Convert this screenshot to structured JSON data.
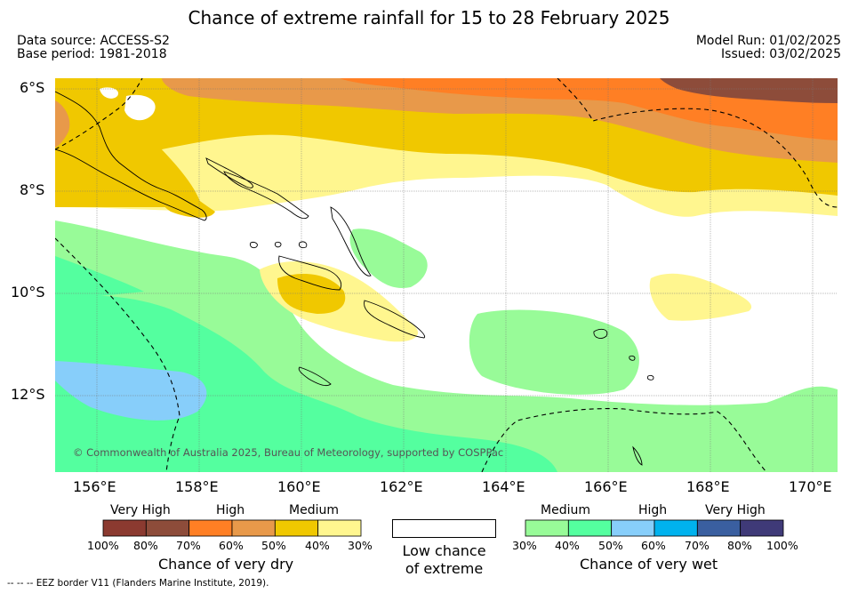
{
  "title": "Chance of extreme rainfall for 15 to 28 February 2025",
  "data_source": "Data source: ACCESS-S2",
  "base_period": "Base period: 1981-2018",
  "model_run": "Model Run: 01/02/2025",
  "issued": "Issued: 03/02/2025",
  "lat_labels": [
    "6°S",
    "8°S",
    "10°S",
    "12°S"
  ],
  "lon_labels": [
    "156°E",
    "158°E",
    "160°E",
    "162°E",
    "164°E",
    "166°E",
    "168°E",
    "170°E"
  ],
  "copyright": "© Commonwealth of Australia 2025, Bureau of Meteorology, supported by COSPPac",
  "footnote": "--  --  -- EEZ border V11 (Flanders Marine Institute, 2019).",
  "legend_dry": {
    "headers": [
      "Very High",
      "High",
      "Medium"
    ],
    "colors": [
      "#8b3a30",
      "#8d4c3a",
      "#ff7f24",
      "#e8994a",
      "#f0c800",
      "#fff68f"
    ],
    "ticks": [
      "100%",
      "80%",
      "70%",
      "60%",
      "50%",
      "40%",
      "30%"
    ],
    "title": "Chance of very dry"
  },
  "legend_low": {
    "line1": "Low chance",
    "line2": "of extreme"
  },
  "legend_wet": {
    "headers": [
      "Medium",
      "High",
      "Very High"
    ],
    "colors": [
      "#98fb98",
      "#54ff9f",
      "#87cefa",
      "#00b2ee",
      "#3a5fa0",
      "#3f3a78"
    ],
    "ticks": [
      "30%",
      "40%",
      "50%",
      "60%",
      "70%",
      "80%",
      "100%"
    ],
    "title": "Chance of very wet"
  }
}
